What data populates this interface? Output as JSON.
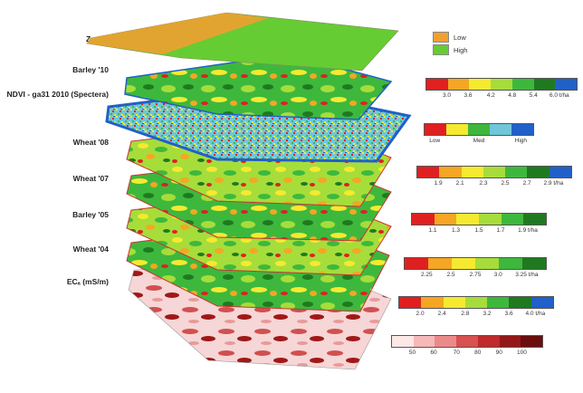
{
  "colors": {
    "low": "#f0a030",
    "high": "#66cc33",
    "red": "#e02020",
    "orange": "#f5a623",
    "yellow": "#f5ea30",
    "lightgreen": "#a6dd3a",
    "green": "#3db83d",
    "darkgreen": "#1f7a1f",
    "blue": "#2060c8"
  },
  "layers": [
    {
      "id": "zones",
      "label": "Zones"
    },
    {
      "id": "barley10",
      "label": "Barley '10"
    },
    {
      "id": "ndvi",
      "label": "NDVI - ga31 2010 (Spectera)"
    },
    {
      "id": "wheat08",
      "label": "Wheat '08"
    },
    {
      "id": "wheat07",
      "label": "Wheat '07"
    },
    {
      "id": "barley05",
      "label": "Barley '05"
    },
    {
      "id": "wheat04",
      "label": "Wheat '04"
    },
    {
      "id": "eca",
      "label": "ECₐ (mS/m)"
    }
  ],
  "zone_legend": {
    "low": "Low",
    "high": "High"
  },
  "legends": [
    {
      "id": "barley10",
      "ticks": [
        "3.0",
        "3.6",
        "4.2",
        "4.8",
        "5.4",
        "6.0 t/ha"
      ]
    },
    {
      "id": "ndvi",
      "ticks": [
        "Low",
        "Med",
        "High"
      ]
    },
    {
      "id": "wheat08",
      "ticks": [
        "1.9",
        "2.1",
        "2.3",
        "2.5",
        "2.7",
        "2.9 t/ha"
      ]
    },
    {
      "id": "wheat07",
      "ticks": [
        "1.1",
        "1.3",
        "1.5",
        "1.7",
        "1.9 t/ha"
      ]
    },
    {
      "id": "barley05",
      "ticks": [
        "2.25",
        "2.5",
        "2.75",
        "3.0",
        "3.25 t/ha"
      ]
    },
    {
      "id": "wheat04",
      "ticks": [
        "2.0",
        "2.4",
        "2.8",
        "3.2",
        "3.6",
        "4.0 t/ha"
      ]
    },
    {
      "id": "eca",
      "ticks": [
        "50",
        "60",
        "70",
        "80",
        "90",
        "100"
      ]
    }
  ]
}
